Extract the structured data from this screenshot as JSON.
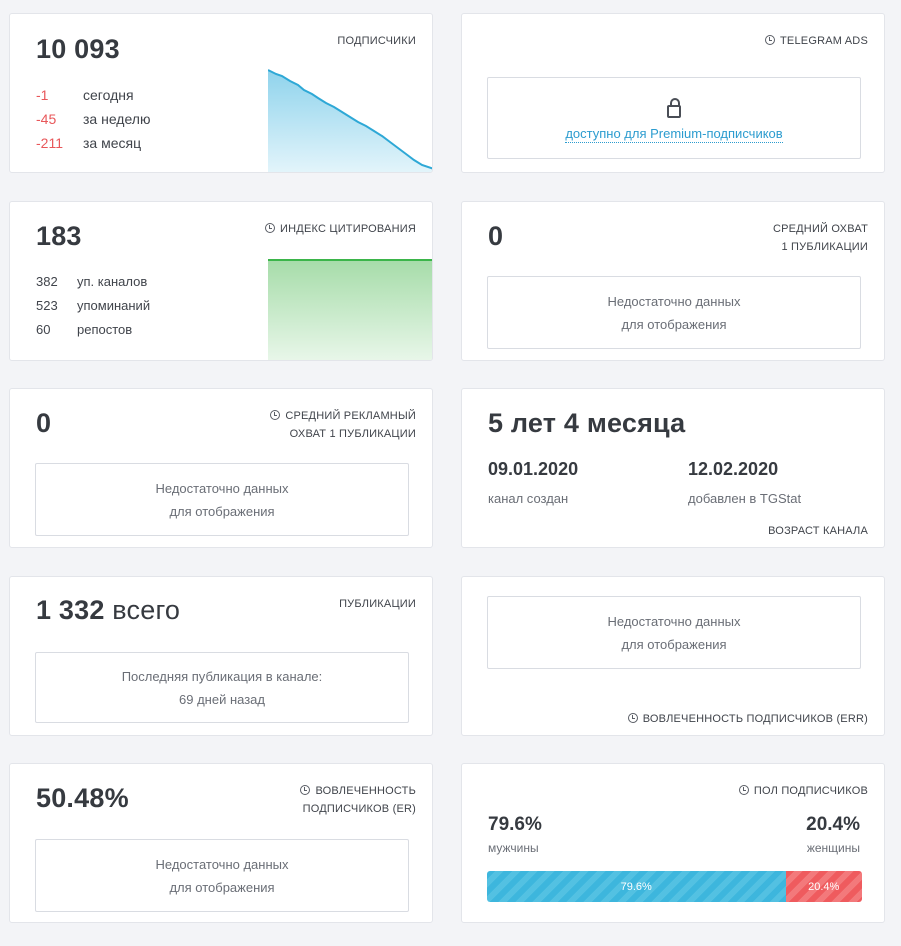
{
  "subscribers": {
    "title": "ПОДПИСЧИКИ",
    "total": "10 093",
    "changes": [
      {
        "value": "-1",
        "label": "сегодня"
      },
      {
        "value": "-45",
        "label": "за неделю"
      },
      {
        "value": "-211",
        "label": "за месяц"
      }
    ],
    "color": "#3db6dd"
  },
  "telegram_ads": {
    "title": "TELEGRAM ADS",
    "icon": "clock-icon",
    "locked_icon": "lock-icon",
    "link_text": "доступно для Premium-подписчиков"
  },
  "citation": {
    "title": "ИНДЕКС ЦИТИРОВАНИЯ",
    "total": "183",
    "stats": [
      {
        "value": "382",
        "label": "уп. каналов"
      },
      {
        "value": "523",
        "label": "упоминаний"
      },
      {
        "value": "60",
        "label": "репостов"
      }
    ],
    "color": "#3bb54a"
  },
  "avg_reach": {
    "title_line1": "СРЕДНИЙ ОХВАТ",
    "title_line2": "1 ПУБЛИКАЦИИ",
    "total": "0",
    "empty_line1": "Недостаточно данных",
    "empty_line2": "для отображения"
  },
  "avg_ad_reach": {
    "title_line1": "СРЕДНИЙ РЕКЛАМНЫЙ",
    "title_line2": "ОХВАТ 1 ПУБЛИКАЦИИ",
    "total": "0",
    "empty_line1": "Недостаточно данных",
    "empty_line2": "для отображения"
  },
  "channel_age": {
    "title": "ВОЗРАСТ КАНАЛА",
    "age": "5 лет 4 месяца",
    "created_date": "09.01.2020",
    "created_label": "канал создан",
    "added_date": "12.02.2020",
    "added_label": "добавлен в TGStat"
  },
  "publications": {
    "title": "ПУБЛИКАЦИИ",
    "total": "1 332",
    "unit": "всего",
    "last_line1": "Последняя публикация в канале:",
    "last_line2": "69 дней назад"
  },
  "err": {
    "title": "ВОВЛЕЧЕННОСТЬ ПОДПИСЧИКОВ (ERR)",
    "empty_line1": "Недостаточно данных",
    "empty_line2": "для отображения"
  },
  "er": {
    "title_line1": "ВОВЛЕЧЕННОСТЬ",
    "title_line2": "ПОДПИСЧИКОВ (ER)",
    "total": "50.48%",
    "empty_line1": "Недостаточно данных",
    "empty_line2": "для отображения"
  },
  "gender": {
    "title": "ПОЛ ПОДПИСЧИКОВ",
    "male_pct": "79.6%",
    "male_label": "мужчины",
    "female_pct": "20.4%",
    "female_label": "женщины",
    "male_fraction": 0.796,
    "female_fraction": 0.204,
    "male_color": "#3db6dd",
    "female_color": "#ef5b5e"
  }
}
